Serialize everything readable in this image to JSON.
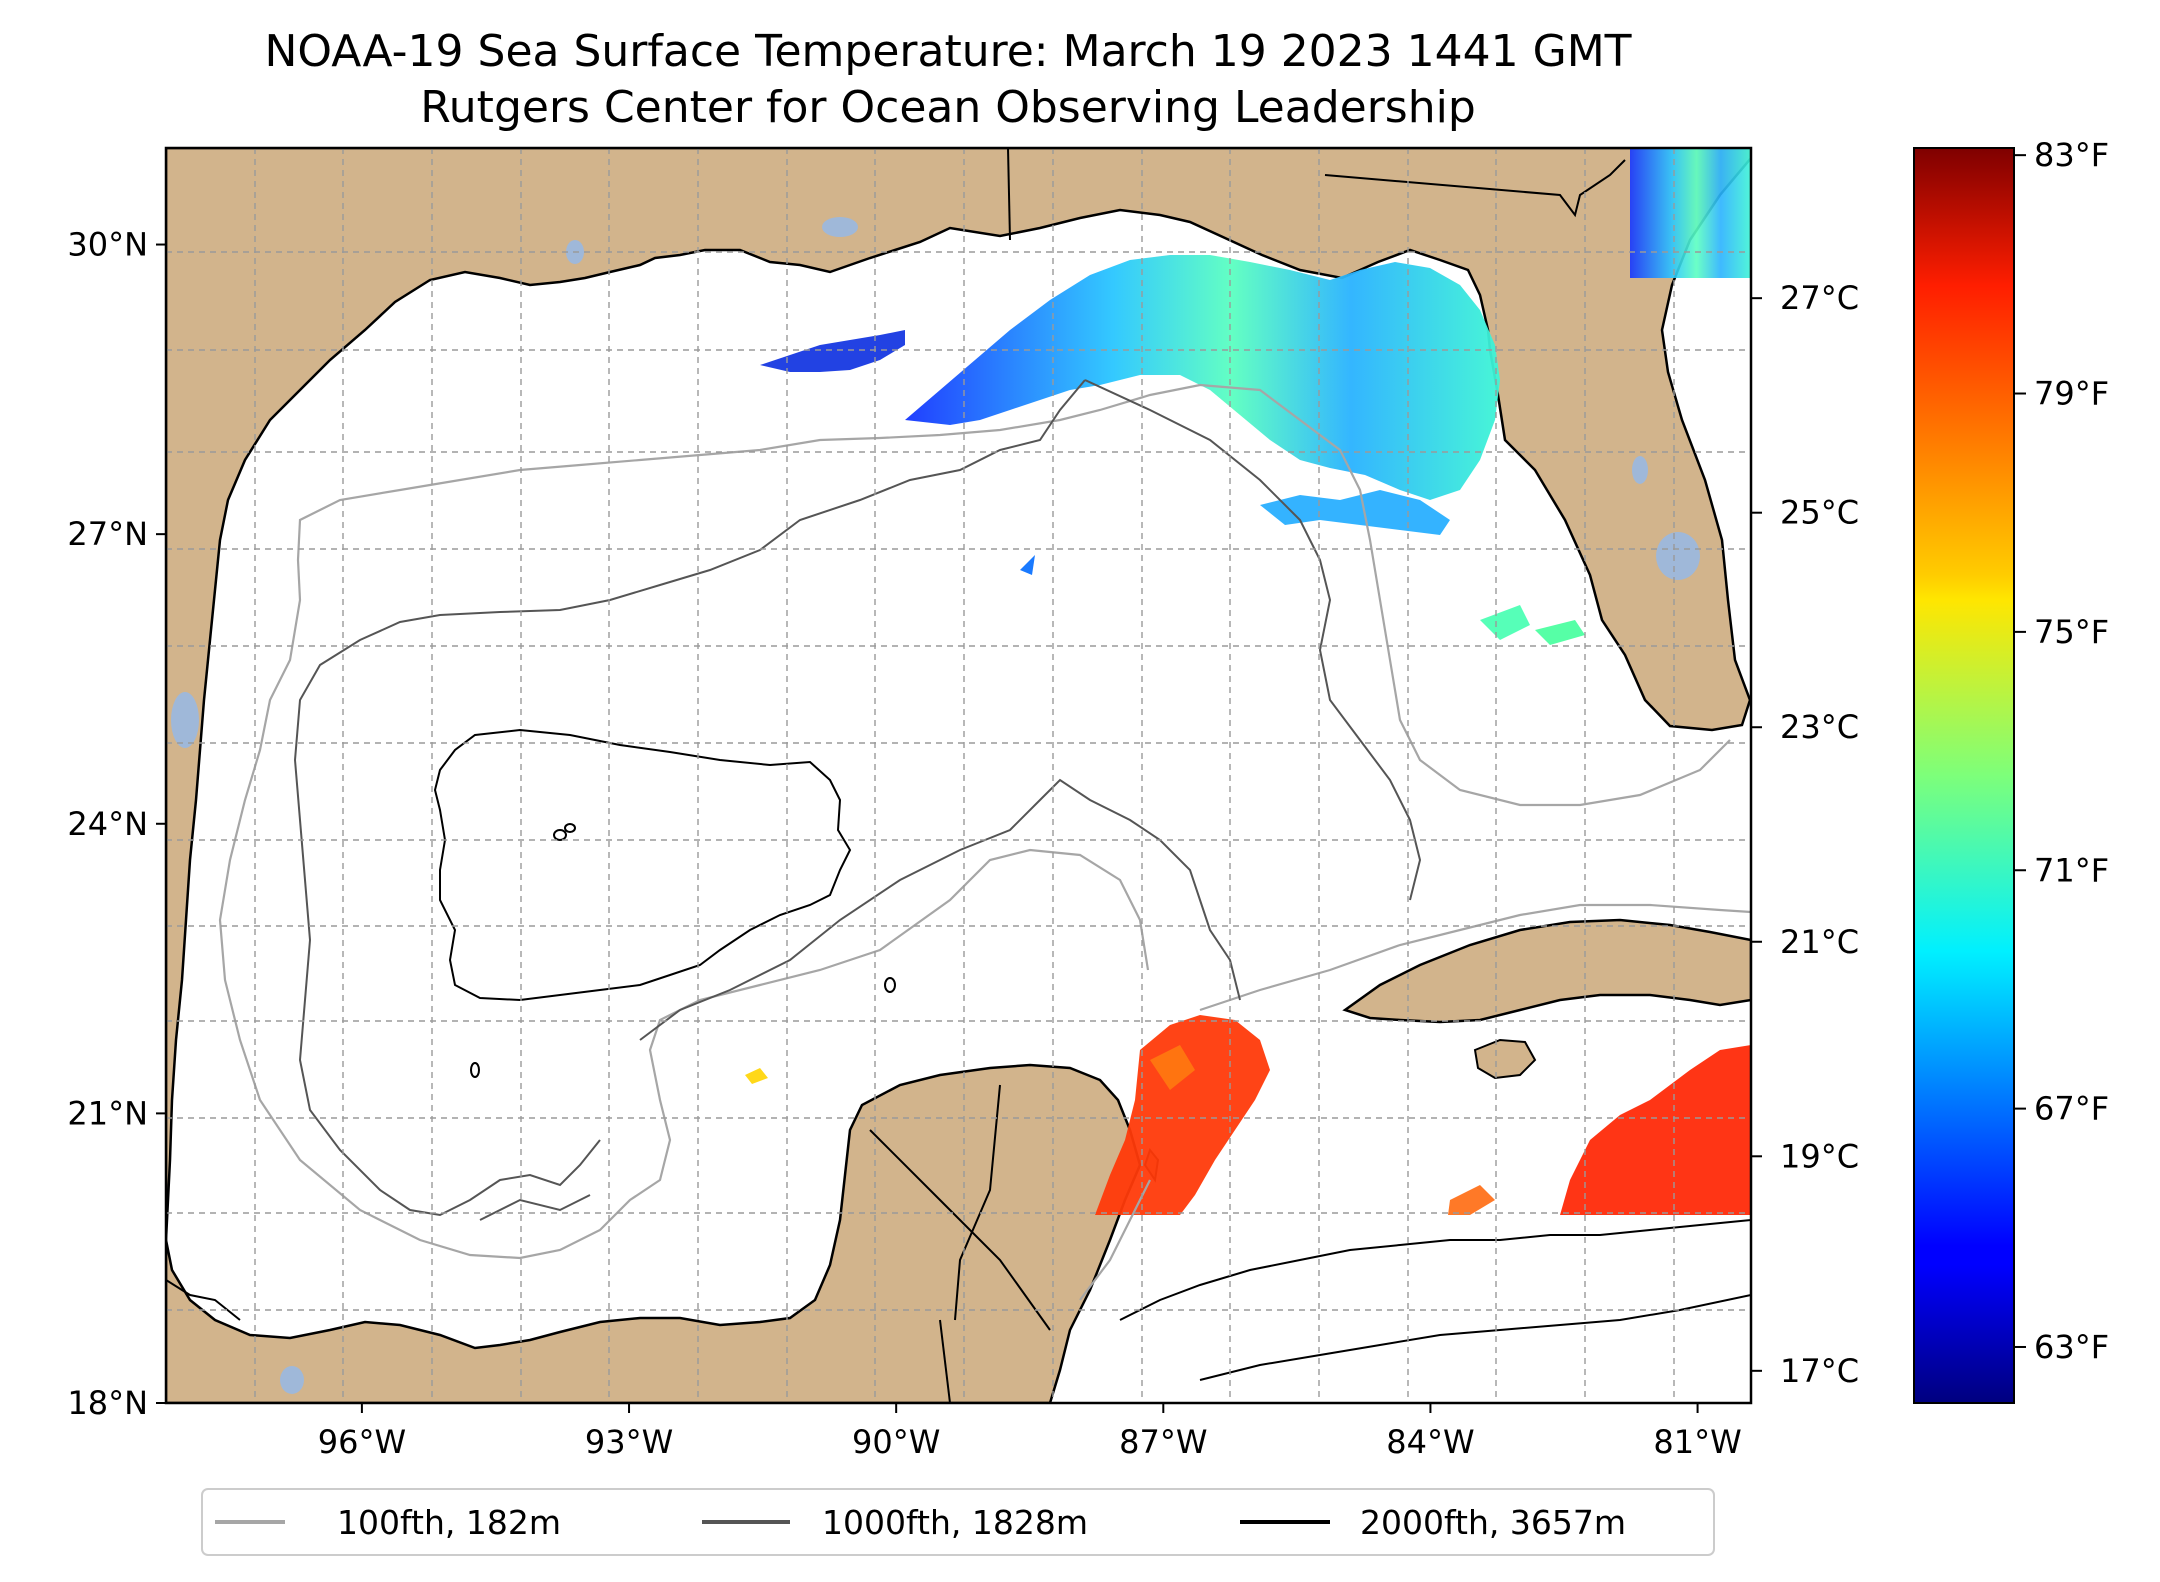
{
  "title_line1": "NOAA-19 Sea Surface Temperature: March 19 2023 1441 GMT",
  "title_line2": "Rutgers Center for Ocean Observing Leadership",
  "map": {
    "lon_range": [
      -98.2,
      -80.4
    ],
    "lat_range": [
      18.0,
      31.0
    ],
    "x_ticks": [
      {
        "value": -96,
        "label": "96°W"
      },
      {
        "value": -93,
        "label": "93°W"
      },
      {
        "value": -90,
        "label": "90°W"
      },
      {
        "value": -87,
        "label": "87°W"
      },
      {
        "value": -84,
        "label": "84°W"
      },
      {
        "value": -81,
        "label": "81°W"
      }
    ],
    "y_ticks": [
      {
        "value": 30,
        "label": "30°N"
      },
      {
        "value": 27,
        "label": "27°N"
      },
      {
        "value": 24,
        "label": "24°N"
      },
      {
        "value": 21,
        "label": "21°N"
      },
      {
        "value": 18,
        "label": "18°N"
      }
    ],
    "grid": true,
    "land_color": "#d2b48c",
    "water_color": "#ffffff",
    "lake_color": "#9fb8d9"
  },
  "colorbar": {
    "colormap": "jet",
    "celsius_range": [
      16.7,
      28.4
    ],
    "celsius_ticks": [
      {
        "value": 17,
        "label": "17°C"
      },
      {
        "value": 19,
        "label": "19°C"
      },
      {
        "value": 21,
        "label": "21°C"
      },
      {
        "value": 23,
        "label": "23°C"
      },
      {
        "value": 25,
        "label": "25°C"
      },
      {
        "value": 27,
        "label": "27°C"
      }
    ],
    "fahrenheit_ticks": [
      {
        "value": 63,
        "label": "63°F"
      },
      {
        "value": 67,
        "label": "67°F"
      },
      {
        "value": 71,
        "label": "71°F"
      },
      {
        "value": 75,
        "label": "75°F"
      },
      {
        "value": 79,
        "label": "79°F"
      },
      {
        "value": 83,
        "label": "83°F"
      }
    ]
  },
  "legend": [
    {
      "label": "100fth, 182m",
      "color": "#a6a6a6"
    },
    {
      "label": "1000fth, 1828m",
      "color": "#555555"
    },
    {
      "label": "2000fth, 3657m",
      "color": "#000000"
    }
  ]
}
